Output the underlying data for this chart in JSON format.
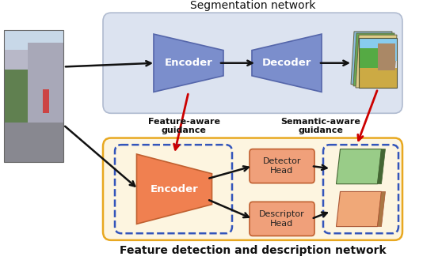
{
  "title_seg": "Segmentation network",
  "title_feat": "Feature detection and description network",
  "seg_box_color": "#dce3f0",
  "seg_box_edge": "#b0bbd0",
  "feat_box_color": "#fdf5e0",
  "feat_box_edge": "#e8a820",
  "dashed_box_color": "#3355bb",
  "encoder_seg_color": "#7b8ecc",
  "decoder_seg_color": "#7b8ecc",
  "encoder_feat_color": "#f08050",
  "head_color": "#f0a07a",
  "arrow_color": "#111111",
  "red_arrow_color": "#cc0000",
  "label_encoder_seg": "Encoder",
  "label_decoder_seg": "Decoder",
  "label_encoder_feat": "Encoder",
  "label_detector": "Detector\nHead",
  "label_descriptor": "Descriptor\nHead",
  "label_feature_aware": "Feature-aware\nguidance",
  "label_semantic_aware": "Semantic-aware\nguidance",
  "background_color": "#ffffff",
  "fig_w": 5.34,
  "fig_h": 3.34,
  "dpi": 100
}
